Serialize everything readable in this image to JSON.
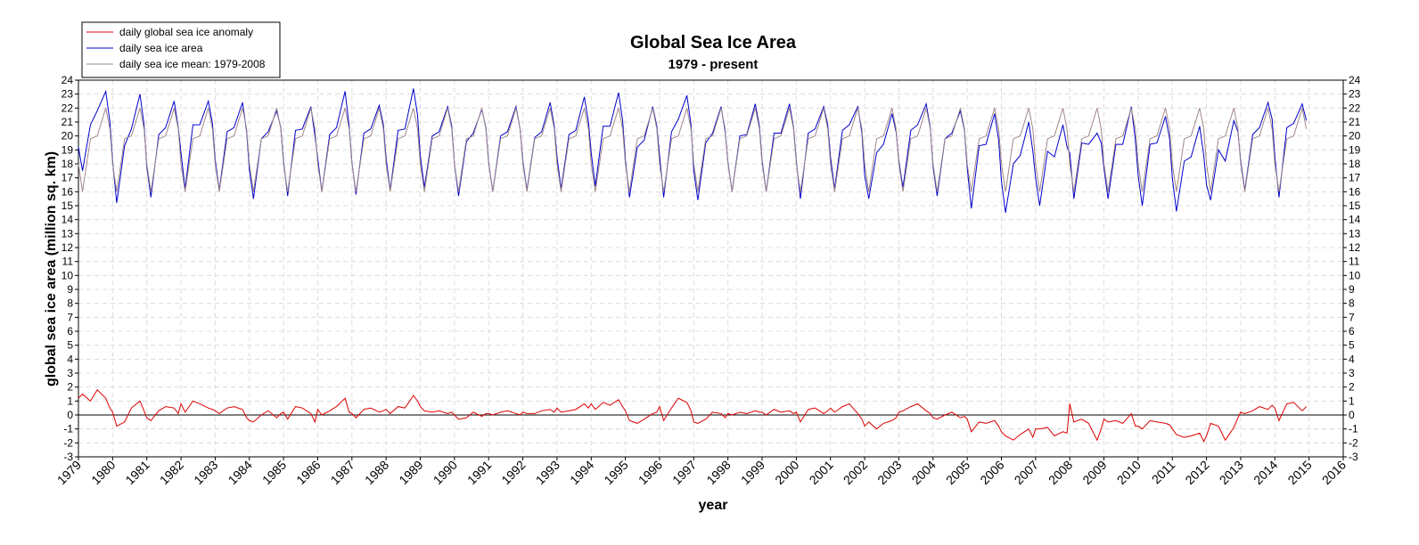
{
  "chart_data": {
    "type": "line",
    "title": "Global Sea Ice Area",
    "subtitle": "1979 - present",
    "xlabel": "year",
    "ylabel": "global sea ice area (million sq. km)",
    "xlim": [
      1979,
      2016
    ],
    "xticks": [
      1979,
      1980,
      1981,
      1982,
      1983,
      1984,
      1985,
      1986,
      1987,
      1988,
      1989,
      1990,
      1991,
      1992,
      1993,
      1994,
      1995,
      1996,
      1997,
      1998,
      1999,
      2000,
      2001,
      2002,
      2003,
      2004,
      2005,
      2006,
      2007,
      2008,
      2009,
      2010,
      2011,
      2012,
      2013,
      2014,
      2015,
      2016
    ],
    "ylim": [
      -3,
      24
    ],
    "yticks": [
      -3,
      -2,
      -1,
      0,
      1,
      2,
      3,
      4,
      5,
      6,
      7,
      8,
      9,
      10,
      11,
      12,
      13,
      14,
      15,
      16,
      17,
      18,
      19,
      20,
      21,
      22,
      23,
      24
    ],
    "grid": true,
    "hline": 0,
    "legend": "upper left",
    "x": [
      1979,
      1979.12,
      1979.35,
      1979.55,
      1979.8,
      1979.92,
      1980,
      1980.12,
      1980.35,
      1980.55,
      1980.8,
      1980.92,
      1981,
      1981.12,
      1981.35,
      1981.55,
      1981.8,
      1981.92,
      1982,
      1982.12,
      1982.35,
      1982.55,
      1982.8,
      1982.92,
      1983,
      1983.12,
      1983.35,
      1983.55,
      1983.8,
      1983.92,
      1984,
      1984.12,
      1984.35,
      1984.55,
      1984.8,
      1984.92,
      1985,
      1985.12,
      1985.35,
      1985.55,
      1985.8,
      1985.92,
      1986,
      1986.12,
      1986.35,
      1986.55,
      1986.8,
      1986.92,
      1987,
      1987.12,
      1987.35,
      1987.55,
      1987.8,
      1987.92,
      1988,
      1988.12,
      1988.35,
      1988.55,
      1988.8,
      1988.92,
      1989,
      1989.12,
      1989.35,
      1989.55,
      1989.8,
      1989.92,
      1990,
      1990.12,
      1990.35,
      1990.55,
      1990.8,
      1990.92,
      1991,
      1991.12,
      1991.35,
      1991.55,
      1991.8,
      1991.92,
      1992,
      1992.12,
      1992.35,
      1992.55,
      1992.8,
      1992.92,
      1993,
      1993.12,
      1993.35,
      1993.55,
      1993.8,
      1993.92,
      1994,
      1994.12,
      1994.35,
      1994.55,
      1994.8,
      1994.92,
      1995,
      1995.12,
      1995.35,
      1995.55,
      1995.8,
      1995.92,
      1996,
      1996.12,
      1996.35,
      1996.55,
      1996.8,
      1996.92,
      1997,
      1997.12,
      1997.35,
      1997.55,
      1997.8,
      1997.92,
      1998,
      1998.12,
      1998.35,
      1998.55,
      1998.8,
      1998.92,
      1999,
      1999.12,
      1999.35,
      1999.55,
      1999.8,
      1999.92,
      2000,
      2000.12,
      2000.35,
      2000.55,
      2000.8,
      2000.92,
      2001,
      2001.12,
      2001.35,
      2001.55,
      2001.8,
      2001.92,
      2002,
      2002.12,
      2002.35,
      2002.55,
      2002.8,
      2002.92,
      2003,
      2003.12,
      2003.35,
      2003.55,
      2003.8,
      2003.92,
      2004,
      2004.12,
      2004.35,
      2004.55,
      2004.8,
      2004.92,
      2005,
      2005.12,
      2005.35,
      2005.55,
      2005.8,
      2005.92,
      2006,
      2006.12,
      2006.35,
      2006.55,
      2006.8,
      2006.92,
      2007,
      2007.12,
      2007.35,
      2007.55,
      2007.8,
      2007.92,
      2008,
      2008.12,
      2008.35,
      2008.55,
      2008.8,
      2008.92,
      2009,
      2009.12,
      2009.35,
      2009.55,
      2009.8,
      2009.92,
      2010,
      2010.12,
      2010.35,
      2010.55,
      2010.8,
      2010.92,
      2011,
      2011.12,
      2011.35,
      2011.55,
      2011.8,
      2011.92,
      2012,
      2012.12,
      2012.35,
      2012.55,
      2012.8,
      2012.92,
      2013,
      2013.12,
      2013.35,
      2013.55,
      2013.8,
      2013.92,
      2014,
      2014.12,
      2014.35,
      2014.55,
      2014.8,
      2014.92
    ],
    "series": [
      {
        "name": "daily global sea ice anomaly",
        "color": "#dd0000",
        "values": [
          1.2,
          1.5,
          1.0,
          1.8,
          1.2,
          0.5,
          0.2,
          -0.8,
          -0.5,
          0.5,
          1.0,
          0.3,
          -0.2,
          -0.4,
          0.3,
          0.6,
          0.5,
          0.1,
          0.8,
          0.2,
          1.0,
          0.8,
          0.5,
          0.4,
          0.3,
          0.1,
          0.5,
          0.6,
          0.4,
          -0.2,
          -0.4,
          -0.5,
          0.0,
          0.3,
          -0.2,
          0.1,
          0.2,
          -0.3,
          0.6,
          0.5,
          0.1,
          -0.5,
          0.4,
          0.0,
          0.3,
          0.6,
          1.2,
          0.2,
          0.1,
          -0.2,
          0.4,
          0.5,
          0.2,
          0.3,
          0.4,
          0.1,
          0.6,
          0.5,
          1.4,
          1.0,
          0.6,
          0.3,
          0.2,
          0.3,
          0.1,
          0.2,
          0.0,
          -0.3,
          -0.2,
          0.2,
          -0.1,
          0.1,
          0.1,
          0.0,
          0.2,
          0.3,
          0.1,
          0.0,
          0.2,
          0.1,
          0.1,
          0.3,
          0.4,
          0.2,
          0.5,
          0.2,
          0.3,
          0.4,
          0.8,
          0.5,
          0.8,
          0.4,
          0.9,
          0.7,
          1.1,
          0.6,
          0.3,
          -0.4,
          -0.6,
          -0.3,
          0.1,
          0.2,
          0.6,
          -0.4,
          0.5,
          1.2,
          0.9,
          0.3,
          -0.5,
          -0.6,
          -0.3,
          0.2,
          0.1,
          -0.2,
          0.1,
          0.0,
          0.2,
          0.1,
          0.3,
          0.2,
          0.2,
          0.0,
          0.4,
          0.2,
          0.3,
          0.1,
          0.2,
          -0.5,
          0.4,
          0.5,
          0.1,
          0.3,
          0.5,
          0.2,
          0.6,
          0.8,
          0.1,
          -0.3,
          -0.8,
          -0.5,
          -1.0,
          -0.6,
          -0.4,
          -0.2,
          0.2,
          0.3,
          0.6,
          0.8,
          0.3,
          0.1,
          -0.2,
          -0.3,
          0.0,
          0.2,
          -0.2,
          -0.1,
          -0.3,
          -1.2,
          -0.5,
          -0.6,
          -0.4,
          -0.8,
          -1.2,
          -1.5,
          -1.8,
          -1.4,
          -1.0,
          -1.6,
          -1.0,
          -1.0,
          -0.9,
          -1.5,
          -1.2,
          -1.3,
          0.8,
          -0.5,
          -0.3,
          -0.6,
          -1.8,
          -1.0,
          -0.3,
          -0.5,
          -0.4,
          -0.6,
          0.1,
          -0.8,
          -0.8,
          -1.0,
          -0.4,
          -0.5,
          -0.6,
          -0.7,
          -1.0,
          -1.4,
          -1.6,
          -1.5,
          -1.3,
          -1.9,
          -1.5,
          -0.6,
          -0.8,
          -1.8,
          -0.9,
          -0.2,
          0.2,
          0.1,
          0.3,
          0.6,
          0.4,
          0.7,
          0.5,
          -0.4,
          0.8,
          0.9,
          0.3,
          0.6
        ]
      },
      {
        "name": "daily sea ice area",
        "color": "#0000cc",
        "values": [
          19.2,
          17.5,
          20.8,
          21.8,
          23.2,
          21.0,
          18.2,
          15.2,
          19.3,
          20.5,
          23.0,
          20.8,
          17.8,
          15.6,
          20.1,
          20.6,
          22.5,
          20.6,
          18.8,
          16.2,
          20.8,
          20.8,
          22.5,
          20.9,
          18.3,
          16.1,
          20.3,
          20.6,
          22.4,
          20.3,
          17.6,
          15.5,
          19.8,
          20.3,
          21.8,
          20.6,
          18.2,
          15.7,
          20.4,
          20.5,
          22.1,
          20.0,
          18.4,
          16.0,
          20.1,
          20.6,
          23.2,
          20.7,
          18.1,
          15.8,
          20.2,
          20.5,
          22.2,
          20.8,
          18.4,
          16.1,
          20.4,
          20.5,
          23.4,
          21.5,
          18.6,
          16.3,
          20.0,
          20.3,
          22.1,
          20.7,
          18.0,
          15.7,
          19.6,
          20.2,
          21.9,
          20.6,
          18.1,
          16.0,
          20.0,
          20.3,
          22.1,
          20.5,
          18.2,
          16.1,
          19.9,
          20.3,
          22.4,
          20.7,
          18.5,
          16.2,
          20.1,
          20.4,
          22.8,
          21.0,
          18.8,
          16.4,
          20.7,
          20.7,
          23.1,
          21.1,
          18.3,
          15.6,
          19.2,
          19.7,
          22.1,
          20.7,
          18.6,
          15.6,
          20.3,
          21.2,
          22.9,
          20.8,
          17.5,
          15.4,
          19.5,
          20.2,
          22.1,
          20.3,
          18.1,
          16.0,
          20.0,
          20.1,
          22.3,
          20.7,
          18.2,
          16.0,
          20.2,
          20.2,
          22.3,
          20.6,
          18.2,
          15.5,
          20.2,
          20.5,
          22.1,
          20.8,
          18.5,
          16.2,
          20.4,
          20.8,
          22.1,
          20.2,
          17.2,
          15.5,
          18.8,
          19.4,
          21.6,
          20.3,
          18.2,
          16.3,
          20.4,
          20.8,
          22.3,
          20.6,
          17.8,
          15.7,
          19.8,
          20.2,
          21.8,
          20.4,
          17.7,
          14.8,
          19.3,
          19.4,
          21.6,
          19.7,
          16.8,
          14.5,
          18.0,
          18.6,
          21.0,
          18.9,
          17.0,
          15.0,
          18.9,
          18.5,
          20.8,
          19.2,
          18.8,
          15.5,
          19.5,
          19.4,
          20.2,
          19.5,
          17.7,
          15.5,
          19.4,
          19.4,
          22.1,
          19.7,
          17.2,
          15.0,
          19.4,
          19.5,
          21.4,
          19.8,
          17.0,
          14.6,
          18.2,
          18.5,
          20.7,
          18.6,
          16.5,
          15.4,
          19.0,
          18.2,
          21.1,
          20.3,
          18.2,
          16.1,
          20.1,
          20.6,
          22.4,
          21.2,
          18.5,
          15.6,
          20.6,
          20.9,
          22.3,
          21.1
        ]
      },
      {
        "name": "daily sea ice mean: 1979-2008",
        "color": "#a08888",
        "values": [
          18,
          16,
          19.8,
          20,
          22,
          20.5,
          18,
          16,
          19.8,
          20,
          22,
          20.5,
          18,
          16,
          19.8,
          20,
          22,
          20.5,
          18,
          16,
          19.8,
          20,
          22,
          20.5,
          18,
          16,
          19.8,
          20,
          22,
          20.5,
          18,
          16,
          19.8,
          20,
          22,
          20.5,
          18,
          16,
          19.8,
          20,
          22,
          20.5,
          18,
          16,
          19.8,
          20,
          22,
          20.5,
          18,
          16,
          19.8,
          20,
          22,
          20.5,
          18,
          16,
          19.8,
          20,
          22,
          20.5,
          18,
          16,
          19.8,
          20,
          22,
          20.5,
          18,
          16,
          19.8,
          20,
          22,
          20.5,
          18,
          16,
          19.8,
          20,
          22,
          20.5,
          18,
          16,
          19.8,
          20,
          22,
          20.5,
          18,
          16,
          19.8,
          20,
          22,
          20.5,
          18,
          16,
          19.8,
          20,
          22,
          20.5,
          18,
          16,
          19.8,
          20,
          22,
          20.5,
          18,
          16,
          19.8,
          20,
          22,
          20.5,
          18,
          16,
          19.8,
          20,
          22,
          20.5,
          18,
          16,
          19.8,
          20,
          22,
          20.5,
          18,
          16,
          19.8,
          20,
          22,
          20.5,
          18,
          16,
          19.8,
          20,
          22,
          20.5,
          18,
          16,
          19.8,
          20,
          22,
          20.5,
          18,
          16,
          19.8,
          20,
          22,
          20.5,
          18,
          16,
          19.8,
          20,
          22,
          20.5,
          18,
          16,
          19.8,
          20,
          22,
          20.5,
          18,
          16,
          19.8,
          20,
          22,
          20.5,
          18,
          16,
          19.8,
          20,
          22,
          20.5,
          18,
          16,
          19.8,
          20,
          22,
          20.5,
          18,
          16,
          19.8,
          20,
          22,
          20.5,
          18,
          16,
          19.8,
          20,
          22,
          20.5,
          18,
          16,
          19.8,
          20,
          22,
          20.5,
          18,
          16,
          19.8,
          20,
          22,
          20.5,
          18,
          16,
          19.8,
          20,
          22,
          20.5,
          18,
          16,
          19.8,
          20,
          22,
          20.5,
          18,
          16,
          19.8,
          20,
          22,
          20.5
        ]
      }
    ]
  }
}
